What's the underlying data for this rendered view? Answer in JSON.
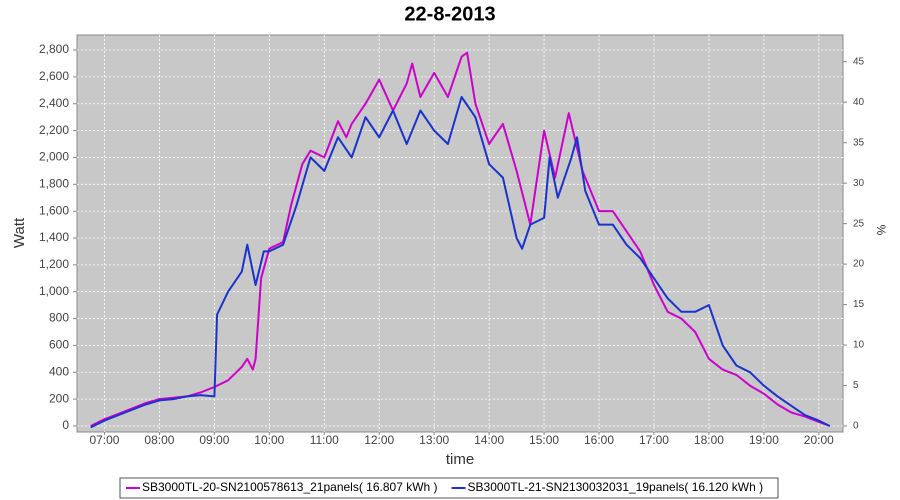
{
  "chart_data": {
    "type": "line",
    "title": "22-8-2013",
    "x_label": "time",
    "y_label": "Watt",
    "y2_label": "%",
    "xlim": [
      6.5,
      20.44
    ],
    "ylim": [
      -45,
      2912
    ],
    "y2lim": [
      -0.74,
      48.3
    ],
    "xticks": [
      {
        "value": 7,
        "label": "07:00"
      },
      {
        "value": 8,
        "label": "08:00"
      },
      {
        "value": 9,
        "label": "09:00"
      },
      {
        "value": 10,
        "label": "10:00"
      },
      {
        "value": 11,
        "label": "11:00"
      },
      {
        "value": 12,
        "label": "12:00"
      },
      {
        "value": 13,
        "label": "13:00"
      },
      {
        "value": 14,
        "label": "14:00"
      },
      {
        "value": 15,
        "label": "15:00"
      },
      {
        "value": 16,
        "label": "16:00"
      },
      {
        "value": 17,
        "label": "17:00"
      },
      {
        "value": 18,
        "label": "18:00"
      },
      {
        "value": 19,
        "label": "19:00"
      },
      {
        "value": 20,
        "label": "20:00"
      }
    ],
    "yticks": [
      0,
      200,
      400,
      600,
      800,
      {
        "value": 1000,
        "label": "1,000"
      },
      {
        "value": 1200,
        "label": "1,200"
      },
      {
        "value": 1400,
        "label": "1,400"
      },
      {
        "value": 1600,
        "label": "1,600"
      },
      {
        "value": 1800,
        "label": "1,800"
      },
      {
        "value": 2000,
        "label": "2,000"
      },
      {
        "value": 2200,
        "label": "2,200"
      },
      {
        "value": 2400,
        "label": "2,400"
      },
      {
        "value": 2600,
        "label": "2,600"
      },
      {
        "value": 2800,
        "label": "2,800"
      }
    ],
    "y2ticks": [
      0,
      5,
      10,
      15,
      20,
      25,
      30,
      35,
      40,
      45
    ],
    "grid": true,
    "series": [
      {
        "name": "SB3000TL-20-SN2100578613_21panels( 16.807 kWh )",
        "color": "#cc00cc",
        "x": [
          6.75,
          7.0,
          7.25,
          7.5,
          7.75,
          8.0,
          8.25,
          8.5,
          8.75,
          9.0,
          9.25,
          9.5,
          9.6,
          9.7,
          9.75,
          9.85,
          10.0,
          10.25,
          10.4,
          10.6,
          10.75,
          11.0,
          11.25,
          11.4,
          11.5,
          11.75,
          12.0,
          12.25,
          12.5,
          12.6,
          12.75,
          13.0,
          13.25,
          13.5,
          13.6,
          13.75,
          14.0,
          14.25,
          14.5,
          14.75,
          15.0,
          15.2,
          15.45,
          15.7,
          16.0,
          16.25,
          16.5,
          16.75,
          17.0,
          17.25,
          17.5,
          17.75,
          18.0,
          18.25,
          18.5,
          18.75,
          19.0,
          19.25,
          19.5,
          19.75,
          20.0,
          20.2
        ],
        "values": [
          0,
          50,
          90,
          130,
          170,
          200,
          210,
          220,
          250,
          290,
          340,
          440,
          500,
          420,
          500,
          1100,
          1320,
          1370,
          1650,
          1950,
          2050,
          2000,
          2270,
          2150,
          2250,
          2400,
          2580,
          2350,
          2550,
          2700,
          2450,
          2630,
          2450,
          2750,
          2780,
          2400,
          2100,
          2250,
          1900,
          1500,
          2200,
          1850,
          2330,
          1900,
          1600,
          1600,
          1450,
          1300,
          1050,
          850,
          800,
          700,
          500,
          420,
          380,
          300,
          240,
          160,
          100,
          70,
          30,
          0
        ]
      },
      {
        "name": "SB3000TL-21-SN2130032031_19panels( 16.120 kWh )",
        "color": "#1a33cc",
        "x": [
          6.75,
          7.0,
          7.25,
          7.5,
          7.75,
          8.0,
          8.25,
          8.5,
          8.75,
          9.0,
          9.05,
          9.25,
          9.5,
          9.6,
          9.75,
          9.9,
          10.0,
          10.25,
          10.5,
          10.75,
          11.0,
          11.25,
          11.5,
          11.75,
          12.0,
          12.25,
          12.5,
          12.75,
          13.0,
          13.25,
          13.5,
          13.75,
          14.0,
          14.25,
          14.5,
          14.6,
          14.75,
          15.0,
          15.1,
          15.25,
          15.5,
          15.6,
          15.75,
          16.0,
          16.25,
          16.5,
          16.75,
          17.0,
          17.25,
          17.5,
          17.75,
          18.0,
          18.25,
          18.5,
          18.75,
          19.0,
          19.25,
          19.5,
          19.75,
          20.0,
          20.2
        ],
        "values": [
          -10,
          40,
          80,
          120,
          160,
          190,
          200,
          220,
          230,
          220,
          830,
          1000,
          1150,
          1350,
          1050,
          1300,
          1300,
          1350,
          1650,
          2000,
          1900,
          2150,
          2000,
          2300,
          2150,
          2350,
          2100,
          2350,
          2200,
          2100,
          2450,
          2300,
          1950,
          1850,
          1400,
          1320,
          1500,
          1550,
          2000,
          1700,
          2000,
          2150,
          1750,
          1500,
          1500,
          1350,
          1250,
          1100,
          950,
          850,
          850,
          900,
          600,
          450,
          400,
          300,
          220,
          150,
          80,
          40,
          0
        ]
      }
    ]
  }
}
